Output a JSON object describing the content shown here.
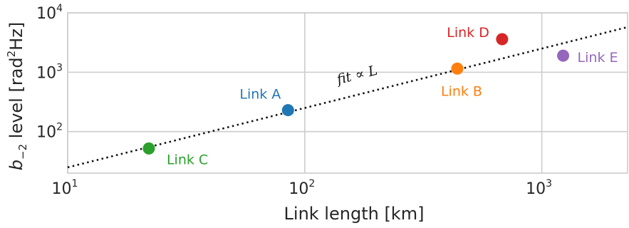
{
  "chart_data": {
    "type": "scatter",
    "xscale": "log",
    "yscale": "log",
    "xlim": [
      10,
      2300
    ],
    "ylim": [
      20,
      10000
    ],
    "grid": true,
    "xlabel": "Link length [km]",
    "ylabel": {
      "prefix": "b",
      "subscript": "−2",
      "middle": " level [rad",
      "superscript": "2",
      "suffix": "Hz]"
    },
    "xticks": [
      {
        "value": 10,
        "base": "10",
        "exp": "1"
      },
      {
        "value": 100,
        "base": "10",
        "exp": "2"
      },
      {
        "value": 1000,
        "base": "10",
        "exp": "3"
      }
    ],
    "yticks": [
      {
        "value": 100,
        "base": "10",
        "exp": "2"
      },
      {
        "value": 1000,
        "base": "10",
        "exp": "3"
      },
      {
        "value": 10000,
        "base": "10",
        "exp": "4"
      }
    ],
    "points": [
      {
        "label": "Link A",
        "x": 85,
        "y": 230,
        "color": "#1f77b4",
        "label_pos": "upper-left"
      },
      {
        "label": "Link B",
        "x": 440,
        "y": 1150,
        "color": "#ff7f0e",
        "label_pos": "below"
      },
      {
        "label": "Link C",
        "x": 22,
        "y": 52,
        "color": "#2ca02c",
        "label_pos": "lower-right"
      },
      {
        "label": "Link D",
        "x": 680,
        "y": 3600,
        "color": "#d62728",
        "label_pos": "left"
      },
      {
        "label": "Link E",
        "x": 1230,
        "y": 1900,
        "color": "#9467bd",
        "label_pos": "right"
      }
    ],
    "fit": {
      "label": {
        "text": "fit ∝ ",
        "var": "L"
      },
      "style": "dotted",
      "color": "#111111",
      "x_from": 10,
      "x_to": 2300,
      "y_at_x_from": 25,
      "slope": 1
    }
  }
}
